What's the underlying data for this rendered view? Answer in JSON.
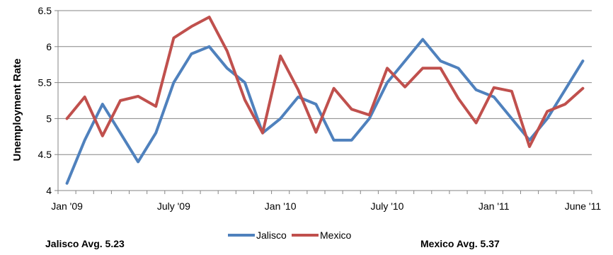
{
  "chart_data": {
    "type": "line",
    "title": "",
    "xlabel": "",
    "ylabel": "Unemployment Rate",
    "ylim": [
      4,
      6.5
    ],
    "yticks": [
      "4",
      "4.5",
      "5",
      "5.5",
      "6",
      "6.5"
    ],
    "grid": true,
    "legend_position": "bottom",
    "x": [
      "Jan '09",
      "Feb '09",
      "Mar '09",
      "Apr '09",
      "May '09",
      "June '09",
      "July '09",
      "Aug '09",
      "Sep '09",
      "Oct '09",
      "Nov '09",
      "Dec '09",
      "Jan '10",
      "Feb '10",
      "Mar '10",
      "Apr '10",
      "May '10",
      "June '10",
      "July '10",
      "Aug '10",
      "Sep '10",
      "Oct '10",
      "Nov '10",
      "Dec '10",
      "Jan '11",
      "Feb '11",
      "Mar '11",
      "Apr '11",
      "May '11",
      "June '11"
    ],
    "xtick_labels": [
      {
        "index": 0,
        "label": "Jan '09"
      },
      {
        "index": 6,
        "label": "July '09"
      },
      {
        "index": 12,
        "label": "Jan '10"
      },
      {
        "index": 18,
        "label": "July '10"
      },
      {
        "index": 24,
        "label": "Jan '11"
      },
      {
        "index": 29,
        "label": "June '11"
      }
    ],
    "series": [
      {
        "name": "Jalisco",
        "color": "#4F81BD",
        "values": [
          4.1,
          4.7,
          5.2,
          4.8,
          4.4,
          4.8,
          5.5,
          5.9,
          6.0,
          5.7,
          5.5,
          4.8,
          5.0,
          5.3,
          5.2,
          4.7,
          4.7,
          5.0,
          5.5,
          5.8,
          6.1,
          5.8,
          5.7,
          5.4,
          5.3,
          5.0,
          4.7,
          5.0,
          5.4,
          5.8
        ]
      },
      {
        "name": "Mexico",
        "color": "#C0504D",
        "values": [
          5.0,
          5.3,
          4.76,
          5.25,
          5.31,
          5.17,
          6.12,
          6.28,
          6.41,
          5.94,
          5.26,
          4.8,
          5.87,
          5.4,
          4.81,
          5.42,
          5.13,
          5.05,
          5.7,
          5.44,
          5.7,
          5.7,
          5.28,
          4.94,
          5.43,
          5.38,
          4.61,
          5.1,
          5.2,
          5.42
        ]
      }
    ]
  },
  "annotations": {
    "left": "Jalisco Avg. 5.23",
    "right": "Mexico Avg. 5.37"
  }
}
